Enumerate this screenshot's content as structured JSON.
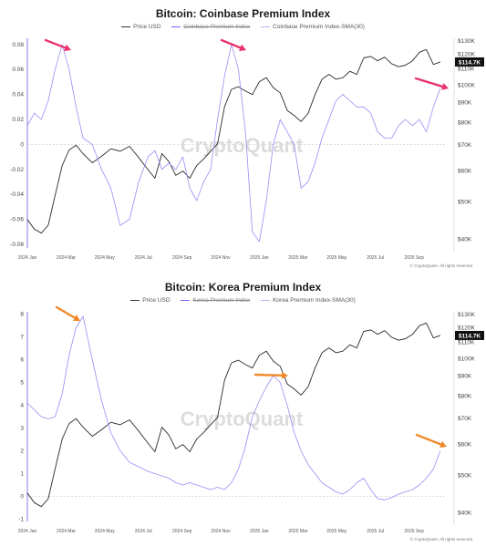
{
  "colors": {
    "price": "#2b2b2b",
    "sma": "#9a8cf5",
    "zero_line": "#bbbbbb",
    "axis_line": "#8a7cf0",
    "arrow_top": "#e8336d",
    "arrow_bottom": "#f08a2c",
    "badge_bg": "#111111"
  },
  "watermark": "CryptoQuant",
  "copyright": "© CryptoQuant. All rights reserved",
  "chart_data": [
    {
      "type": "line",
      "title": "Bitcoin: Coinbase Premium Index",
      "legend": [
        "Price USD",
        "Coinbase Premium Index",
        "Coinbase Premium Index-SMA(30)"
      ],
      "x_tick_labels": [
        "2024 Jan",
        "2024 Mar",
        "2024 May",
        "2024 Jul",
        "2024 Sep",
        "2024 Nov",
        "2025 Jan",
        "2025 Mar",
        "2025 May",
        "2025 Jul",
        "2025 Sep"
      ],
      "left_axis": {
        "ticks": [
          -0.08,
          -0.06,
          -0.04,
          -0.02,
          0,
          0.02,
          0.04,
          0.06,
          0.08
        ],
        "tick_labels": [
          "-0.08",
          "-0.06",
          "-0.04",
          "-0.02",
          "0",
          "0.02",
          "0.04",
          "0.06",
          "0.08"
        ],
        "range": [
          -0.083,
          0.085
        ]
      },
      "right_axis": {
        "ticks": [
          40000,
          50000,
          60000,
          70000,
          80000,
          90000,
          100000,
          110000,
          120000,
          130000
        ],
        "tick_labels": [
          "$40K",
          "$50K",
          "$60K",
          "$70K",
          "$80K",
          "$90K",
          "$100K",
          "$110K",
          "$120K",
          "$130K"
        ],
        "scale": "log",
        "range": [
          38000,
          132000
        ]
      },
      "last_price_label": "$114.7K",
      "last_price": 114700,
      "series": [
        {
          "role": "price",
          "axis": "right",
          "x": [
            2024.0,
            2024.03,
            2024.06,
            2024.09,
            2024.12,
            2024.15,
            2024.18,
            2024.21,
            2024.24,
            2024.28,
            2024.32,
            2024.36,
            2024.4,
            2024.44,
            2024.48,
            2024.52,
            2024.55,
            2024.58,
            2024.61,
            2024.64,
            2024.67,
            2024.7,
            2024.73,
            2024.76,
            2024.79,
            2024.82,
            2024.85,
            2024.88,
            2024.91,
            2024.94,
            2024.97,
            2025.0,
            2025.03,
            2025.06,
            2025.09,
            2025.12,
            2025.15,
            2025.18,
            2025.21,
            2025.24,
            2025.27,
            2025.3,
            2025.33,
            2025.36,
            2025.39,
            2025.42,
            2025.45,
            2025.48,
            2025.51,
            2025.54,
            2025.57,
            2025.6,
            2025.63,
            2025.66,
            2025.69,
            2025.72,
            2025.75,
            2025.78
          ],
          "y": [
            45000,
            42500,
            41500,
            43500,
            52000,
            62000,
            68000,
            70000,
            66500,
            63000,
            65500,
            68500,
            67500,
            69500,
            65000,
            60500,
            57500,
            66500,
            63500,
            58500,
            60000,
            57500,
            62000,
            64500,
            67500,
            70500,
            88000,
            97500,
            99000,
            96500,
            94500,
            102000,
            104500,
            98500,
            95500,
            86000,
            83500,
            80500,
            84500,
            94500,
            103500,
            106500,
            103500,
            104500,
            108500,
            106500,
            117500,
            118500,
            115500,
            118000,
            113500,
            111500,
            112500,
            115500,
            121500,
            123500,
            113000,
            114700
          ]
        },
        {
          "role": "sma",
          "axis": "left",
          "x": [
            2024.0,
            2024.03,
            2024.06,
            2024.09,
            2024.12,
            2024.15,
            2024.18,
            2024.21,
            2024.24,
            2024.28,
            2024.32,
            2024.36,
            2024.4,
            2024.44,
            2024.48,
            2024.52,
            2024.55,
            2024.58,
            2024.61,
            2024.64,
            2024.67,
            2024.7,
            2024.73,
            2024.76,
            2024.79,
            2024.82,
            2024.85,
            2024.88,
            2024.91,
            2024.94,
            2024.97,
            2025.0,
            2025.03,
            2025.06,
            2025.09,
            2025.12,
            2025.15,
            2025.18,
            2025.21,
            2025.24,
            2025.27,
            2025.3,
            2025.33,
            2025.36,
            2025.39,
            2025.42,
            2025.45,
            2025.48,
            2025.51,
            2025.54,
            2025.57,
            2025.6,
            2025.63,
            2025.66,
            2025.69,
            2025.72,
            2025.75,
            2025.78
          ],
          "y": [
            0.015,
            0.025,
            0.02,
            0.035,
            0.06,
            0.08,
            0.06,
            0.03,
            0.005,
            0.0,
            -0.02,
            -0.035,
            -0.065,
            -0.06,
            -0.03,
            -0.01,
            -0.005,
            -0.02,
            -0.015,
            -0.02,
            -0.01,
            -0.035,
            -0.045,
            -0.03,
            -0.02,
            0.02,
            0.055,
            0.08,
            0.06,
            0.01,
            -0.07,
            -0.078,
            -0.045,
            0.0,
            0.02,
            0.01,
            0.0,
            -0.035,
            -0.03,
            -0.015,
            0.005,
            0.02,
            0.035,
            0.04,
            0.035,
            0.03,
            0.03,
            0.025,
            0.01,
            0.005,
            0.005,
            0.015,
            0.02,
            0.015,
            0.02,
            0.01,
            0.03,
            0.045
          ]
        }
      ]
    },
    {
      "type": "line",
      "title": "Bitcoin: Korea Premium Index",
      "legend": [
        "Price USD",
        "Korea Premium Index",
        "Korea Premium Index-SMA(30)"
      ],
      "x_tick_labels": [
        "2024 Jan",
        "2024 Mar",
        "2024 May",
        "2024 Jul",
        "2024 Sep",
        "2024 Nov",
        "2025 Jan",
        "2025 Mar",
        "2025 May",
        "2025 Jul",
        "2025 Sep"
      ],
      "left_axis": {
        "ticks": [
          -1,
          0,
          1,
          2,
          3,
          4,
          5,
          6,
          7,
          8
        ],
        "tick_labels": [
          "-1",
          "0",
          "1",
          "2",
          "3",
          "4",
          "5",
          "6",
          "7",
          "8"
        ],
        "range": [
          -1.1,
          8.1
        ]
      },
      "right_axis": {
        "ticks": [
          40000,
          50000,
          60000,
          70000,
          80000,
          90000,
          100000,
          110000,
          120000,
          130000
        ],
        "tick_labels": [
          "$40K",
          "$50K",
          "$60K",
          "$70K",
          "$80K",
          "$90K",
          "$100K",
          "$110K",
          "$120K",
          "$130K"
        ],
        "scale": "log",
        "range": [
          38000,
          132000
        ]
      },
      "last_price_label": "$114.7K",
      "last_price": 114700,
      "series": [
        {
          "role": "price",
          "axis": "right",
          "x": [
            2024.0,
            2024.03,
            2024.06,
            2024.09,
            2024.12,
            2024.15,
            2024.18,
            2024.21,
            2024.24,
            2024.28,
            2024.32,
            2024.36,
            2024.4,
            2024.44,
            2024.48,
            2024.52,
            2024.55,
            2024.58,
            2024.61,
            2024.64,
            2024.67,
            2024.7,
            2024.73,
            2024.76,
            2024.79,
            2024.82,
            2024.85,
            2024.88,
            2024.91,
            2024.94,
            2024.97,
            2025.0,
            2025.03,
            2025.06,
            2025.09,
            2025.12,
            2025.15,
            2025.18,
            2025.21,
            2025.24,
            2025.27,
            2025.3,
            2025.33,
            2025.36,
            2025.39,
            2025.42,
            2025.45,
            2025.48,
            2025.51,
            2025.54,
            2025.57,
            2025.6,
            2025.63,
            2025.66,
            2025.69,
            2025.72,
            2025.75,
            2025.78
          ],
          "y": [
            45000,
            42500,
            41500,
            43500,
            52000,
            62000,
            68000,
            70000,
            66500,
            63000,
            65500,
            68500,
            67500,
            69500,
            65000,
            60500,
            57500,
            66500,
            63500,
            58500,
            60000,
            57500,
            62000,
            64500,
            67500,
            70500,
            88000,
            97500,
            99000,
            96500,
            94500,
            102000,
            104500,
            98500,
            95500,
            86000,
            83500,
            80500,
            84500,
            94500,
            103500,
            106500,
            103500,
            104500,
            108500,
            106500,
            117500,
            118500,
            115500,
            118000,
            113500,
            111500,
            112500,
            115500,
            121500,
            123500,
            113000,
            114700
          ]
        },
        {
          "role": "sma",
          "axis": "left",
          "x": [
            2024.0,
            2024.03,
            2024.06,
            2024.09,
            2024.12,
            2024.15,
            2024.18,
            2024.21,
            2024.24,
            2024.28,
            2024.32,
            2024.36,
            2024.4,
            2024.44,
            2024.48,
            2024.52,
            2024.55,
            2024.58,
            2024.61,
            2024.64,
            2024.67,
            2024.7,
            2024.73,
            2024.76,
            2024.79,
            2024.82,
            2024.85,
            2024.88,
            2024.91,
            2024.94,
            2024.97,
            2025.0,
            2025.03,
            2025.06,
            2025.09,
            2025.12,
            2025.15,
            2025.18,
            2025.21,
            2025.24,
            2025.27,
            2025.3,
            2025.33,
            2025.36,
            2025.39,
            2025.42,
            2025.45,
            2025.48,
            2025.51,
            2025.54,
            2025.57,
            2025.6,
            2025.63,
            2025.66,
            2025.69,
            2025.72,
            2025.75,
            2025.78
          ],
          "y": [
            4.1,
            3.8,
            3.5,
            3.4,
            3.5,
            4.5,
            6.2,
            7.4,
            7.9,
            6.0,
            4.2,
            2.8,
            2.0,
            1.5,
            1.3,
            1.1,
            1.0,
            0.9,
            0.8,
            0.6,
            0.5,
            0.6,
            0.5,
            0.4,
            0.3,
            0.4,
            0.3,
            0.6,
            1.2,
            2.2,
            3.5,
            4.2,
            4.8,
            5.3,
            5.0,
            4.0,
            2.8,
            2.0,
            1.4,
            1.0,
            0.6,
            0.4,
            0.2,
            0.1,
            0.3,
            0.6,
            0.8,
            0.3,
            -0.1,
            -0.15,
            -0.05,
            0.1,
            0.2,
            0.3,
            0.5,
            0.8,
            1.2,
            2.0
          ]
        }
      ]
    }
  ]
}
